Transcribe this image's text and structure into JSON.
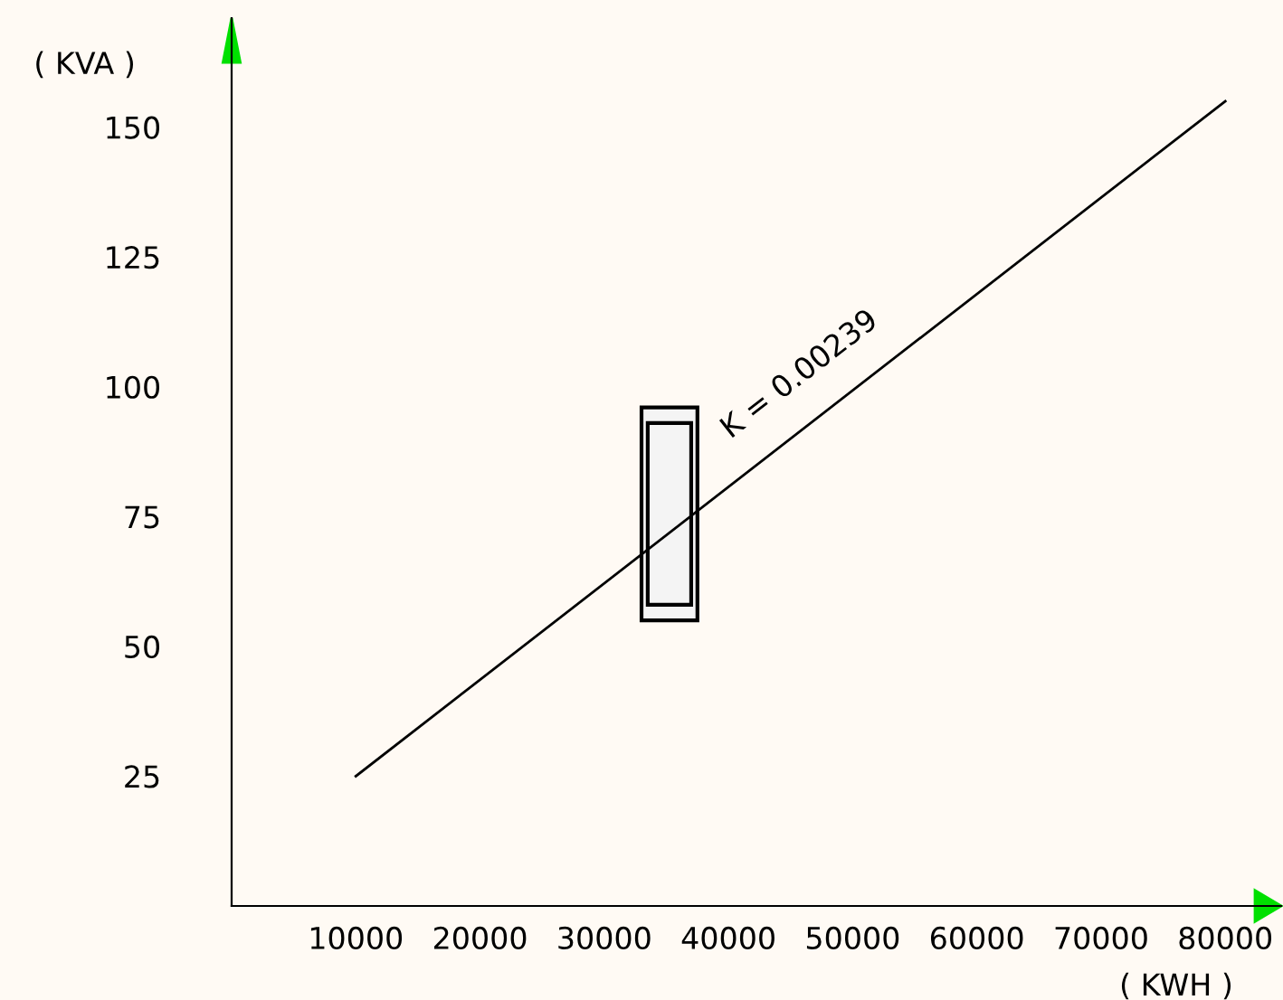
{
  "chart_data": {
    "type": "line",
    "xlabel": "( KWH )",
    "ylabel": "( KVA )",
    "x": [
      10000,
      80000
    ],
    "series": [
      {
        "color": "#000000",
        "values": [
          25,
          155
        ]
      }
    ],
    "xlim": [
      0,
      84500
    ],
    "ylim": [
      0,
      171
    ],
    "xticks": [
      10000,
      20000,
      30000,
      40000,
      50000,
      60000,
      70000,
      80000
    ],
    "yticks": [
      25,
      50,
      75,
      100,
      125,
      150
    ],
    "annotations": [
      "K = 0.00239"
    ],
    "grid": false,
    "legend": false,
    "marker": "none",
    "line_style": "solid"
  }
}
